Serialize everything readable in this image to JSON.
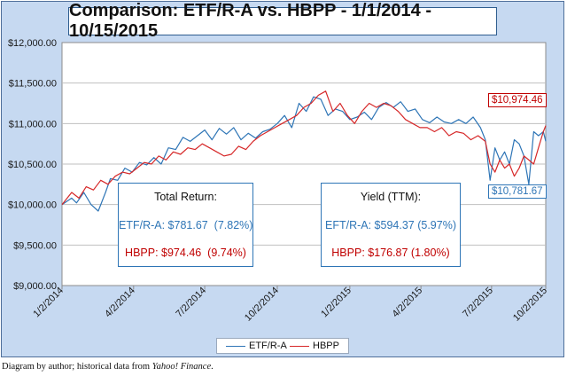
{
  "chart_data": {
    "type": "line",
    "title": "Comparison: ETF/R-A vs. HBPP - 1/1/2014 - 10/15/2015",
    "y_ticks": [
      "$12,000.00",
      "$11,500.00",
      "$11,000.00",
      "$10,500.00",
      "$10,000.00",
      "$9,500.00",
      "$9,000.00"
    ],
    "ylim": [
      9000,
      12000
    ],
    "x_ticks": [
      "1/2/2014",
      "4/2/2014",
      "7/2/2014",
      "10/2/2014",
      "1/2/2015",
      "4/2/2015",
      "7/2/2015",
      "10/2/2015"
    ],
    "grid": true,
    "legend_position": "bottom",
    "series": [
      {
        "name": "ETF/R-A",
        "color": "#2e75b6",
        "x": [
          0,
          0.02,
          0.03,
          0.045,
          0.06,
          0.075,
          0.09,
          0.1,
          0.115,
          0.13,
          0.145,
          0.16,
          0.175,
          0.19,
          0.205,
          0.22,
          0.235,
          0.25,
          0.265,
          0.28,
          0.295,
          0.31,
          0.325,
          0.34,
          0.355,
          0.37,
          0.385,
          0.4,
          0.415,
          0.43,
          0.445,
          0.46,
          0.475,
          0.49,
          0.505,
          0.52,
          0.535,
          0.55,
          0.565,
          0.58,
          0.595,
          0.61,
          0.625,
          0.64,
          0.655,
          0.67,
          0.685,
          0.7,
          0.715,
          0.73,
          0.745,
          0.76,
          0.775,
          0.79,
          0.805,
          0.82,
          0.835,
          0.85,
          0.865,
          0.875,
          0.885,
          0.895,
          0.905,
          0.915,
          0.925,
          0.935,
          0.945,
          0.955,
          0.965,
          0.975,
          0.985,
          0.995,
          1.0
        ],
        "y": [
          10000,
          10080,
          10020,
          10150,
          10000,
          9920,
          10150,
          10320,
          10300,
          10450,
          10400,
          10520,
          10490,
          10580,
          10500,
          10700,
          10680,
          10830,
          10780,
          10850,
          10920,
          10800,
          10940,
          10870,
          10950,
          10800,
          10880,
          10820,
          10900,
          10930,
          11000,
          11100,
          10950,
          11250,
          11150,
          11330,
          11300,
          11100,
          11180,
          11150,
          11050,
          11080,
          11140,
          11050,
          11200,
          11260,
          11200,
          11270,
          11150,
          11180,
          11050,
          11010,
          11080,
          11020,
          11000,
          11050,
          11000,
          11080,
          10950,
          10800,
          10300,
          10700,
          10550,
          10650,
          10500,
          10800,
          10750,
          10600,
          10250,
          10900,
          10850,
          10900,
          10781.67
        ]
      },
      {
        "name": "HBPP",
        "color": "#d62728",
        "x": [
          0,
          0.02,
          0.035,
          0.05,
          0.065,
          0.08,
          0.095,
          0.11,
          0.125,
          0.14,
          0.155,
          0.17,
          0.185,
          0.2,
          0.215,
          0.23,
          0.245,
          0.26,
          0.275,
          0.29,
          0.305,
          0.32,
          0.335,
          0.35,
          0.365,
          0.38,
          0.395,
          0.41,
          0.425,
          0.44,
          0.455,
          0.47,
          0.485,
          0.5,
          0.515,
          0.53,
          0.545,
          0.56,
          0.575,
          0.59,
          0.605,
          0.62,
          0.635,
          0.65,
          0.665,
          0.68,
          0.695,
          0.71,
          0.725,
          0.74,
          0.755,
          0.77,
          0.785,
          0.8,
          0.815,
          0.83,
          0.845,
          0.86,
          0.875,
          0.885,
          0.895,
          0.905,
          0.915,
          0.925,
          0.935,
          0.945,
          0.955,
          0.965,
          0.975,
          0.985,
          0.995,
          1.0
        ],
        "y": [
          10000,
          10150,
          10080,
          10220,
          10180,
          10300,
          10250,
          10350,
          10400,
          10380,
          10450,
          10520,
          10500,
          10600,
          10550,
          10650,
          10620,
          10700,
          10680,
          10750,
          10700,
          10650,
          10600,
          10620,
          10720,
          10680,
          10780,
          10850,
          10900,
          10950,
          11000,
          11050,
          11100,
          11200,
          11250,
          11350,
          11400,
          11150,
          11250,
          11100,
          11000,
          11150,
          11250,
          11200,
          11250,
          11220,
          11150,
          11050,
          11000,
          10950,
          10950,
          10900,
          10950,
          10850,
          10900,
          10880,
          10800,
          10850,
          10780,
          10500,
          10400,
          10550,
          10450,
          10500,
          10350,
          10450,
          10600,
          10550,
          10500,
          10700,
          10900,
          10974.46
        ]
      }
    ]
  },
  "callouts": {
    "hbpp": "$10,974.46",
    "etf": "$10,781.67"
  },
  "total_return": {
    "heading": "Total Return:",
    "etf": "ETF/R-A: $781.67  (7.82%)",
    "hbpp": "HBPP: $974.46  (9.74%)"
  },
  "yield": {
    "heading": "Yield (TTM):",
    "etf": "EFT/R-A: $594.37 (5.97%)",
    "hbpp": "HBPP: $176.87 (1.80%)"
  },
  "caption": {
    "prefix": "Diagram by author; historical data from ",
    "source": "Yahoo! Finance",
    "suffix": "."
  }
}
